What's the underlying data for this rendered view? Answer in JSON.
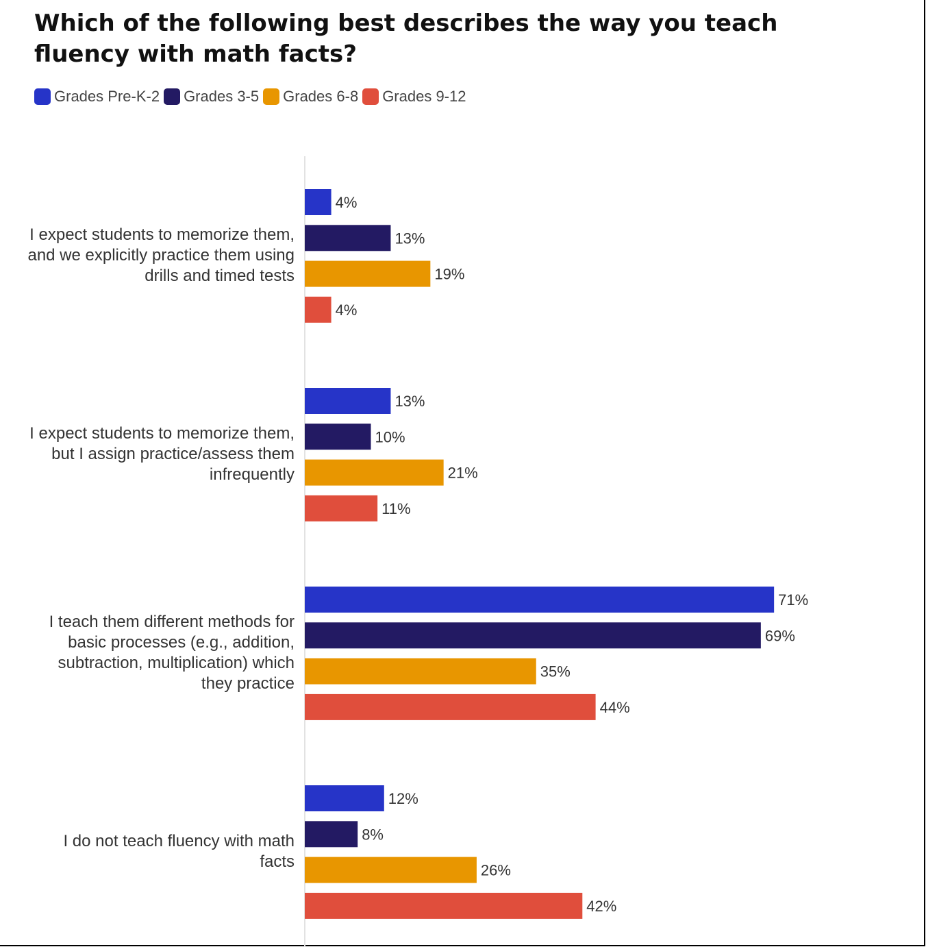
{
  "chart_data": {
    "type": "bar",
    "orientation": "horizontal",
    "title": "Which of the following best describes the way you teach fluency with math facts?",
    "categories": [
      "I expect students to memorize them, and we explicitly practice them using drills and timed tests",
      "I expect students to memorize them, but I assign practice/assess them infrequently",
      "I teach them different methods for basic processes (e.g., addition, subtraction, multiplication) which they practice",
      "I do not teach fluency with math facts"
    ],
    "series": [
      {
        "name": "Grades Pre-K-2",
        "color": "#2634c8",
        "values": [
          4,
          13,
          71,
          12
        ]
      },
      {
        "name": "Grades 3-5",
        "color": "#231a63",
        "values": [
          13,
          10,
          69,
          8
        ]
      },
      {
        "name": "Grades 6-8",
        "color": "#e89600",
        "values": [
          19,
          21,
          35,
          26
        ]
      },
      {
        "name": "Grades 9-12",
        "color": "#e04e3c",
        "values": [
          4,
          11,
          44,
          42
        ]
      }
    ],
    "value_suffix": "%",
    "xlim": [
      0,
      100
    ],
    "grid": false,
    "legend_position": "top-left"
  }
}
